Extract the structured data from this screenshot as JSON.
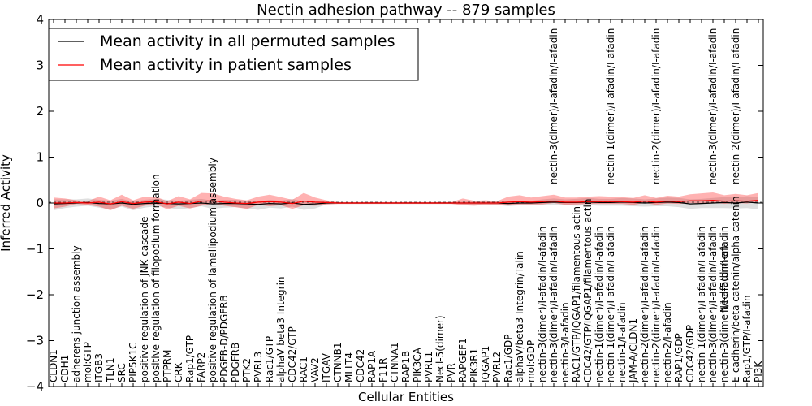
{
  "chart_data": {
    "type": "line",
    "title": "Nectin adhesion pathway -- 879 samples",
    "xlabel": "Cellular Entities",
    "ylabel": "Inferred Activity",
    "ylim": [
      -4,
      4
    ],
    "yticks": [
      -4,
      -3,
      -2,
      -1,
      0,
      1,
      2,
      3,
      4
    ],
    "legend_position": "top-left",
    "categories": [
      "CLDN1",
      "CDH1",
      "adherens junction assembly",
      "mol:GTP",
      "ITGB3",
      "TLN1",
      "SRC",
      "PIP5K1C",
      "positive regulation of JNK cascade",
      "positive regulation of filopodium formation",
      "PTPRM",
      "CRK",
      "Rap1/GTP",
      "FARP2",
      "positive regulation of lamellipodium assembly",
      "PDGFB-D/PDGFRB",
      "PDGFRB",
      "PTK2",
      "PVRL3",
      "Rac1/GTP",
      "alphaV beta3 Integrin",
      "CDC42/GTP",
      "RAC1",
      "VAV2",
      "ITGAV",
      "CTNNB1",
      "MLLT4",
      "CDC42",
      "RAP1A",
      "F11R",
      "CTNNA1",
      "RAP1B",
      "PIK3CA",
      "PVRL1",
      "Necl-5(dimer)",
      "PVR",
      "RAPGEF1",
      "PIK3R1",
      "IQGAP1",
      "PVRL2",
      "Rac1/GDP",
      "alphaV/beta3 Integrin/Talin",
      "mol:GDP",
      "nectin-3(dimer)/I-afadin/I-afadin",
      "nectin-3(dimer)/I-afadin/I-afadin",
      "nectin-3/I-afadin",
      "RAC1/GTP/IQGAP1/filamentous actin",
      "CDC42/GTP/IQGAP1/filamentous actin",
      "nectin-1(dimer)/I-afadin/I-afadin",
      "nectin-1(dimer)/I-afadin/I-afadin",
      "nectin-1/I-afadin",
      "JAM-A/CLDN1",
      "nectin-2(dimer)/I-afadin/I-afadin",
      "nectin-2(dimer)/I-afadin/I-afadin",
      "nectin-2/I-afadin",
      "RAP1/GDP",
      "CDC42/GDP",
      "nectin-1(dimer)/I-afadin/I-afadin",
      "nectin-3(dimer)/I-afadin/I-afadin",
      "nectin-3(dimer)/I-afadin/I-afadin",
      "E-cadherin/beta catenin/alpha catenin",
      "Rap1/GTP/I-afadin",
      "PI3K"
    ],
    "overflow_labels": [
      "nectin-3(dimer)/I-afadin/I-afadin",
      "nectin-1(dimer)/I-afadin/I-afadin",
      "nectin-2(dimer)/I-afadin/I-afadin",
      "nectin-3(dimer)/I-afadin/I-afadin",
      "Necl-5(dimer)",
      "nectin-2(dimer)/I-afadin/I-afadin"
    ],
    "series": [
      {
        "name": "Mean activity in all permuted samples",
        "color": "#000000",
        "values": [
          -0.02,
          -0.01,
          0,
          0.01,
          -0.01,
          -0.02,
          0,
          -0.03,
          -0.01,
          0,
          -0.01,
          -0.02,
          -0.01,
          0,
          -0.02,
          -0.01,
          -0.01,
          -0.02,
          -0.03,
          -0.01,
          -0.02,
          0,
          -0.03,
          -0.02,
          0,
          0,
          0,
          0,
          0,
          0,
          0,
          0,
          0,
          0,
          0,
          0,
          0,
          0,
          0,
          0,
          -0.01,
          0,
          0,
          0.01,
          0.02,
          0.01,
          0.01,
          0.02,
          0.01,
          0.01,
          0.02,
          0.01,
          0,
          0.01,
          0.02,
          0.01,
          -0.02,
          -0.01,
          0,
          0.01,
          0,
          0.02,
          0
        ],
        "lower": [
          -0.14,
          -0.1,
          -0.08,
          -0.07,
          -0.09,
          -0.12,
          -0.08,
          -0.13,
          -0.09,
          -0.07,
          -0.09,
          -0.12,
          -0.1,
          -0.07,
          -0.11,
          -0.09,
          -0.08,
          -0.1,
          -0.12,
          -0.09,
          -0.1,
          -0.08,
          -0.12,
          -0.1,
          -0.03,
          -0.02,
          -0.02,
          -0.02,
          -0.02,
          -0.02,
          -0.02,
          -0.02,
          -0.02,
          -0.02,
          -0.02,
          -0.02,
          -0.03,
          -0.04,
          -0.03,
          -0.04,
          -0.06,
          -0.05,
          -0.05,
          -0.06,
          -0.06,
          -0.06,
          -0.07,
          -0.07,
          -0.07,
          -0.07,
          -0.08,
          -0.08,
          -0.08,
          -0.08,
          -0.09,
          -0.1,
          -0.11,
          -0.1,
          -0.11,
          -0.12,
          -0.12,
          -0.13,
          -0.14
        ],
        "upper": [
          0.1,
          0.09,
          0.08,
          0.09,
          0.08,
          0.07,
          0.09,
          0.06,
          0.08,
          0.09,
          0.08,
          0.07,
          0.08,
          0.09,
          0.07,
          0.08,
          0.08,
          0.07,
          0.06,
          0.08,
          0.07,
          0.09,
          0.06,
          0.07,
          0.03,
          0.02,
          0.02,
          0.02,
          0.02,
          0.02,
          0.02,
          0.02,
          0.02,
          0.02,
          0.02,
          0.02,
          0.03,
          0.04,
          0.03,
          0.04,
          0.05,
          0.05,
          0.05,
          0.07,
          0.08,
          0.07,
          0.08,
          0.09,
          0.08,
          0.08,
          0.09,
          0.09,
          0.08,
          0.09,
          0.1,
          0.1,
          0.1,
          0.1,
          0.11,
          0.12,
          0.12,
          0.13,
          0.13
        ]
      },
      {
        "name": "Mean activity in patient samples",
        "color": "#ff0000",
        "values": [
          0,
          0,
          0.01,
          0,
          0.02,
          -0.02,
          0.03,
          -0.01,
          0.02,
          0.03,
          -0.02,
          0.02,
          -0.01,
          0.04,
          0.05,
          0.02,
          0,
          -0.01,
          0.02,
          0.03,
          0.02,
          -0.01,
          0.04,
          0.02,
          0.01,
          0,
          0,
          0,
          0,
          0,
          0,
          0,
          0,
          0,
          0,
          0,
          0,
          0,
          0,
          0,
          0.02,
          0.03,
          0.02,
          0.03,
          0.04,
          0.02,
          0.02,
          0.03,
          0.03,
          0.03,
          0.03,
          0.02,
          0.04,
          0.02,
          0.04,
          0.03,
          0.05,
          0.05,
          0.06,
          0.04,
          0.05,
          0.04,
          0.06
        ],
        "lower": [
          -0.12,
          -0.08,
          -0.03,
          -0.04,
          -0.1,
          -0.14,
          -0.09,
          -0.12,
          -0.08,
          -0.05,
          -0.12,
          -0.08,
          -0.11,
          -0.1,
          -0.06,
          -0.08,
          -0.09,
          -0.12,
          -0.06,
          -0.1,
          -0.07,
          -0.12,
          -0.09,
          -0.08,
          -0.04,
          -0.02,
          -0.02,
          -0.02,
          -0.02,
          -0.02,
          -0.02,
          -0.02,
          -0.02,
          -0.02,
          -0.02,
          -0.02,
          -0.05,
          -0.06,
          -0.04,
          -0.05,
          -0.06,
          -0.06,
          -0.05,
          -0.06,
          -0.04,
          -0.06,
          -0.05,
          -0.05,
          -0.05,
          -0.05,
          -0.05,
          -0.06,
          -0.04,
          -0.06,
          -0.05,
          -0.05,
          -0.05,
          -0.06,
          -0.05,
          -0.06,
          -0.05,
          -0.05,
          -0.04
        ],
        "upper": [
          0.12,
          0.1,
          0.05,
          0.04,
          0.12,
          0.08,
          0.15,
          0.07,
          0.12,
          0.11,
          0.06,
          0.13,
          0.09,
          0.18,
          0.16,
          0.12,
          0.09,
          0.07,
          0.12,
          0.15,
          0.11,
          0.08,
          0.18,
          0.1,
          0.05,
          0.02,
          0.02,
          0.02,
          0.02,
          0.02,
          0.02,
          0.02,
          0.02,
          0.02,
          0.02,
          0.02,
          0.1,
          0.05,
          0.06,
          0.04,
          0.12,
          0.14,
          0.1,
          0.12,
          0.14,
          0.1,
          0.1,
          0.11,
          0.12,
          0.11,
          0.1,
          0.09,
          0.13,
          0.09,
          0.12,
          0.11,
          0.14,
          0.16,
          0.17,
          0.13,
          0.15,
          0.13,
          0.16
        ]
      }
    ]
  }
}
